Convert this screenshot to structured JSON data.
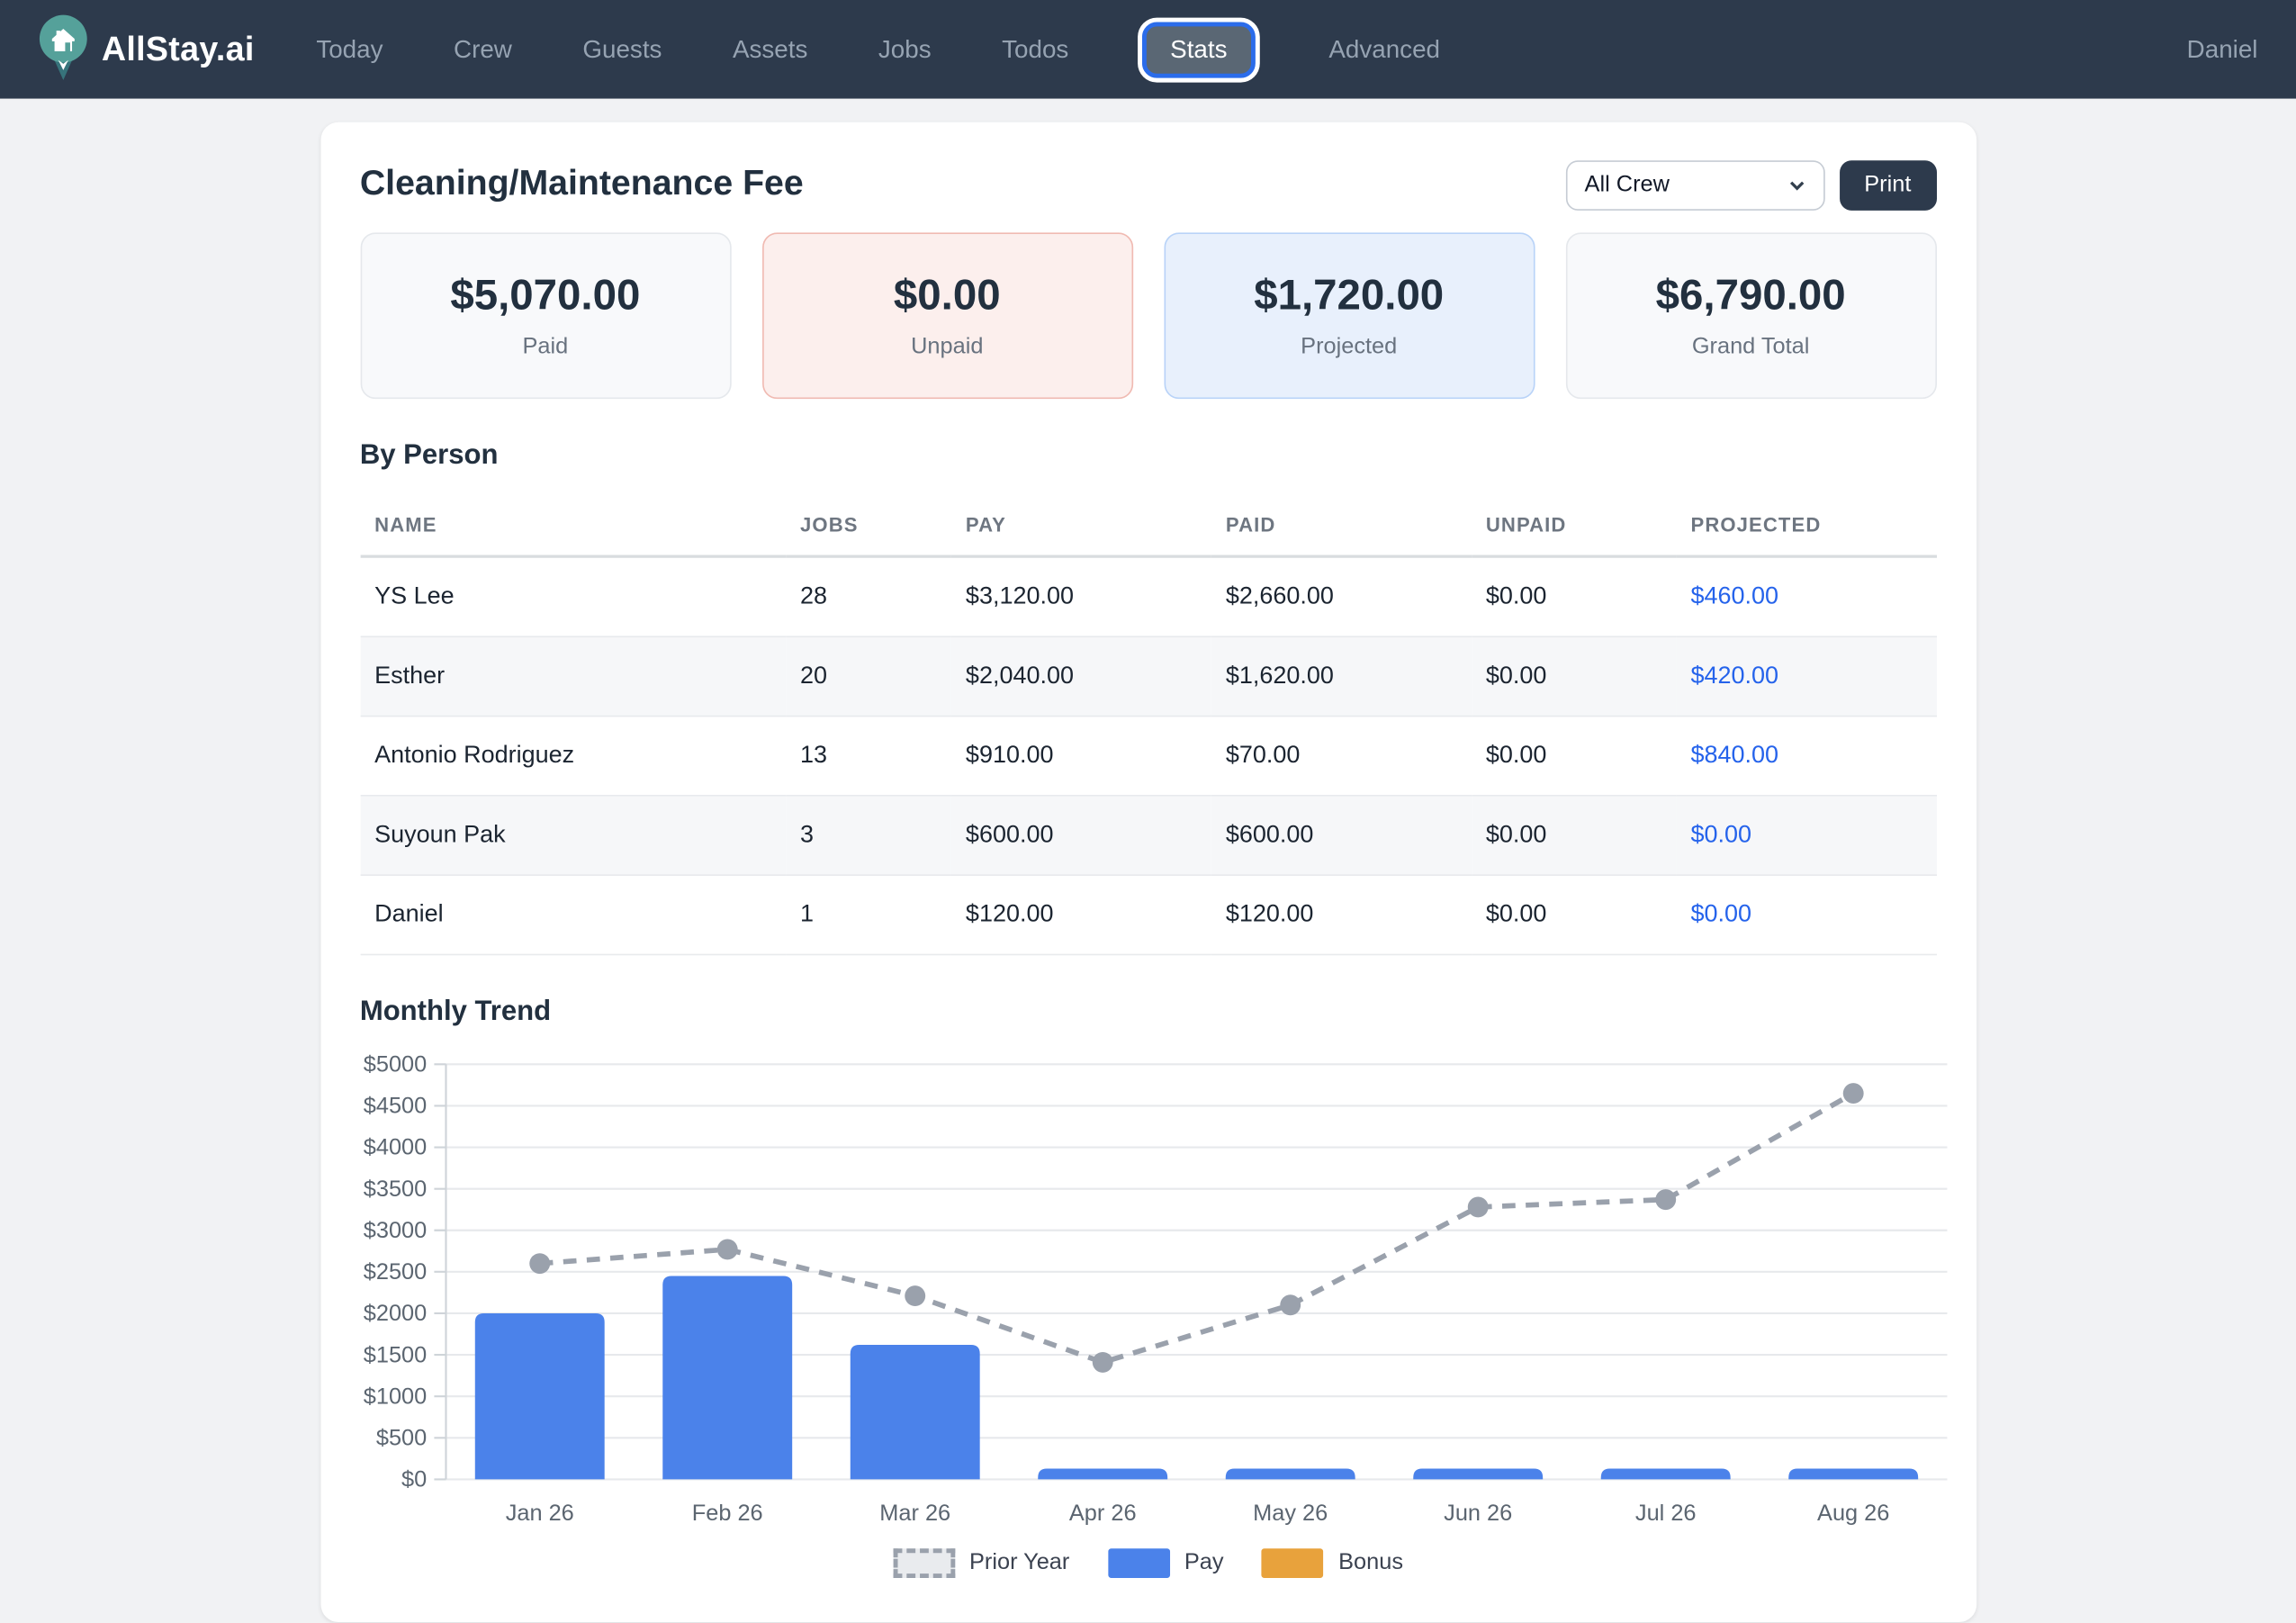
{
  "nav": {
    "brand": "AllStay.ai",
    "items": [
      {
        "label": "Today",
        "active": false
      },
      {
        "label": "Crew",
        "active": false
      },
      {
        "label": "Guests",
        "active": false
      },
      {
        "label": "Assets",
        "active": false
      },
      {
        "label": "Jobs",
        "active": false
      },
      {
        "label": "Todos",
        "active": false
      },
      {
        "label": "Stats",
        "active": true
      },
      {
        "label": "Advanced",
        "active": false
      }
    ],
    "user": "Daniel"
  },
  "page": {
    "title": "Cleaning/Maintenance Fee",
    "crew_filter_value": "All Crew",
    "print_label": "Print",
    "summary_cards": [
      {
        "value": "$5,070.00",
        "label": "Paid",
        "style": "neutral"
      },
      {
        "value": "$0.00",
        "label": "Unpaid",
        "style": "unpaid"
      },
      {
        "value": "$1,720.00",
        "label": "Projected",
        "style": "projected"
      },
      {
        "value": "$6,790.00",
        "label": "Grand Total",
        "style": "neutral"
      }
    ],
    "by_person": {
      "heading": "By Person",
      "columns": [
        "NAME",
        "JOBS",
        "PAY",
        "PAID",
        "UNPAID",
        "PROJECTED"
      ],
      "rows": [
        {
          "name": "YS Lee",
          "jobs": "28",
          "pay": "$3,120.00",
          "paid": "$2,660.00",
          "unpaid": "$0.00",
          "projected": "$460.00"
        },
        {
          "name": "Esther",
          "jobs": "20",
          "pay": "$2,040.00",
          "paid": "$1,620.00",
          "unpaid": "$0.00",
          "projected": "$420.00"
        },
        {
          "name": "Antonio Rodriguez",
          "jobs": "13",
          "pay": "$910.00",
          "paid": "$70.00",
          "unpaid": "$0.00",
          "projected": "$840.00"
        },
        {
          "name": "Suyoun Pak",
          "jobs": "3",
          "pay": "$600.00",
          "paid": "$600.00",
          "unpaid": "$0.00",
          "projected": "$0.00"
        },
        {
          "name": "Daniel",
          "jobs": "1",
          "pay": "$120.00",
          "paid": "$120.00",
          "unpaid": "$0.00",
          "projected": "$0.00"
        }
      ]
    },
    "monthly_trend_heading": "Monthly Trend"
  },
  "chart_data": {
    "type": "bar",
    "title": "Monthly Trend",
    "categories": [
      "Jan 26",
      "Feb 26",
      "Mar 26",
      "Apr 26",
      "May 26",
      "Jun 26",
      "Jul 26",
      "Aug 26"
    ],
    "series": [
      {
        "name": "Prior Year",
        "type": "line",
        "line_style": "dashed",
        "color": "#9aa1ac",
        "values": [
          2600,
          2770,
          2210,
          1410,
          2100,
          3280,
          3370,
          4650
        ]
      },
      {
        "name": "Pay",
        "type": "bar",
        "color": "#4b82ea",
        "values": [
          2000,
          2450,
          1620,
          130,
          130,
          130,
          130,
          130
        ]
      },
      {
        "name": "Bonus",
        "type": "bar",
        "color": "#e8a23c",
        "values": [
          0,
          0,
          0,
          0,
          0,
          0,
          0,
          0
        ]
      }
    ],
    "ylim": [
      0,
      5000
    ],
    "ytick_step": 500,
    "ytick_prefix": "$",
    "grid": true,
    "legend_position": "bottom"
  },
  "colors": {
    "navbar_bg": "#2d3a4c",
    "active_tab_ring": "#2b6cea",
    "projected_text": "#2563eb",
    "unpaid_card_border": "#f0bab2",
    "projected_card_border": "#b9d3f8",
    "bar_pay": "#4b82ea",
    "bar_bonus": "#e8a23c",
    "line_prior_year": "#9aa1ac",
    "logo_teal": "#55a19a",
    "logo_teal_dark": "#37737b"
  }
}
